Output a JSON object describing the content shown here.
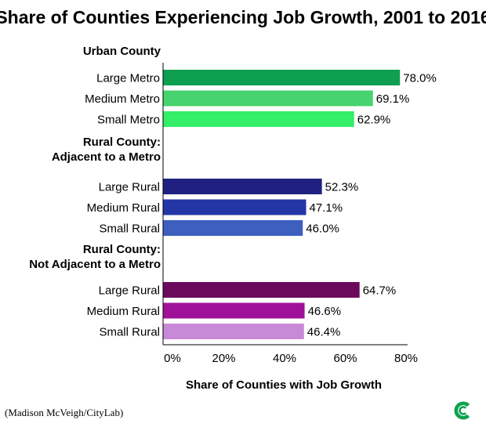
{
  "chart_data": {
    "type": "bar",
    "orientation": "horizontal",
    "title": "Share of Counties Experiencing Job Growth, 2001 to 2016",
    "xlabel": "Share of Counties with Job Growth",
    "ylabel": "",
    "xlim": [
      0,
      80
    ],
    "x_ticks": [
      "0%",
      "20%",
      "40%",
      "60%",
      "80%"
    ],
    "value_suffix": "%",
    "grid": false,
    "legend": "none",
    "groups": [
      {
        "name_lines": [
          "Urban County"
        ],
        "categories": [
          "Large Metro",
          "Medium Metro",
          "Small Metro"
        ],
        "values": [
          78.0,
          69.1,
          62.9
        ],
        "value_labels": [
          "78.0%",
          "69.1%",
          "62.9%"
        ],
        "colors": [
          "#0e9f50",
          "#47d36f",
          "#33ee66"
        ]
      },
      {
        "name_lines": [
          "Rural County:",
          "Adjacent to a Metro"
        ],
        "categories": [
          "Large Rural",
          "Medium Rural",
          "Small Rural"
        ],
        "values": [
          52.3,
          47.1,
          46.0
        ],
        "value_labels": [
          "52.3%",
          "47.1%",
          "46.0%"
        ],
        "colors": [
          "#1f2080",
          "#2436a5",
          "#3f5fbf"
        ]
      },
      {
        "name_lines": [
          "Rural County:",
          "Not Adjacent to a Metro"
        ],
        "categories": [
          "Large Rural",
          "Medium Rural",
          "Small Rural"
        ],
        "values": [
          64.7,
          46.6,
          46.4
        ],
        "value_labels": [
          "64.7%",
          "46.6%",
          "46.4%"
        ],
        "colors": [
          "#6b0a5c",
          "#a0119a",
          "#c88ad6"
        ]
      }
    ]
  },
  "credit": "(Madison McVeigh/CityLab)",
  "logo": {
    "icon": "citylab-logo-icon",
    "color": "#0fa14d"
  }
}
